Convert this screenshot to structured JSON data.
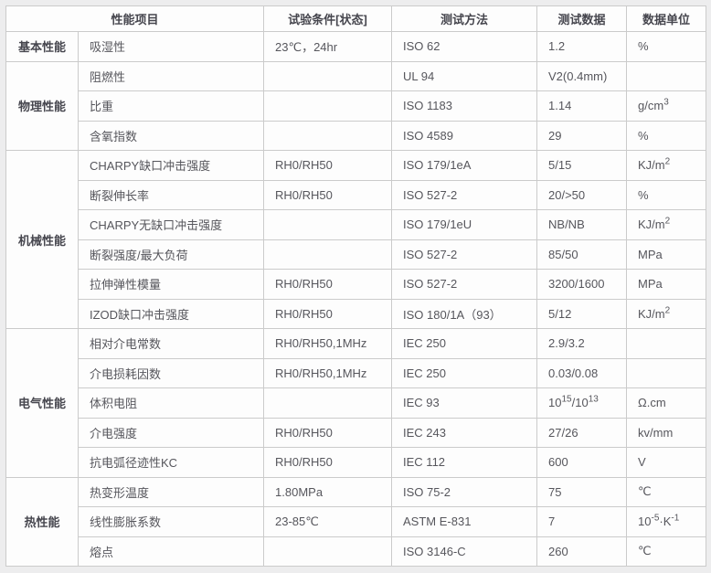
{
  "table": {
    "headers": [
      "性能项目",
      "试验条件[状态]",
      "测试方法",
      "测试数据",
      "数据单位"
    ],
    "groups": [
      {
        "category": "基本性能",
        "rows": [
          {
            "item": "吸湿性",
            "condition": "23℃，24hr",
            "method": "ISO 62",
            "value": "1.2",
            "unit": "%"
          }
        ]
      },
      {
        "category": "物理性能",
        "rows": [
          {
            "item": "阻燃性",
            "condition": "",
            "method": "UL 94",
            "value": "V2(0.4mm)",
            "unit": ""
          },
          {
            "item": "比重",
            "condition": "",
            "method": "ISO 1183",
            "value": "1.14",
            "unit": "g/cm^{3}"
          },
          {
            "item": "含氧指数",
            "condition": "",
            "method": "ISO 4589",
            "value": "29",
            "unit": "%"
          }
        ]
      },
      {
        "category": "机械性能",
        "rows": [
          {
            "item": "CHARPY缺口冲击强度",
            "condition": "RH0/RH50",
            "method": "ISO 179/1eA",
            "value": "5/15",
            "unit": "KJ/m^{2}"
          },
          {
            "item": "断裂伸长率",
            "condition": "RH0/RH50",
            "method": "ISO 527-2",
            "value": "20/>50",
            "unit": "%"
          },
          {
            "item": "CHARPY无缺口冲击强度",
            "condition": "",
            "method": "ISO 179/1eU",
            "value": "NB/NB",
            "unit": "KJ/m^{2}"
          },
          {
            "item": "断裂强度/最大负荷",
            "condition": "",
            "method": "ISO 527-2",
            "value": "85/50",
            "unit": "MPa"
          },
          {
            "item": "拉伸弹性模量",
            "condition": "RH0/RH50",
            "method": "ISO 527-2",
            "value": "3200/1600",
            "unit": "MPa"
          },
          {
            "item": "IZOD缺口冲击强度",
            "condition": "RH0/RH50",
            "method": "ISO 180/1A（93）",
            "value": "5/12",
            "unit": "KJ/m^{2}"
          }
        ]
      },
      {
        "category": "电气性能",
        "rows": [
          {
            "item": "相对介电常数",
            "condition": "RH0/RH50,1MHz",
            "method": "IEC 250",
            "value": "2.9/3.2",
            "unit": ""
          },
          {
            "item": "介电损耗因数",
            "condition": "RH0/RH50,1MHz",
            "method": "IEC 250",
            "value": "0.03/0.08",
            "unit": ""
          },
          {
            "item": "体积电阻",
            "condition": "",
            "method": "IEC 93",
            "value": "10^{15}/10^{13}",
            "unit": "Ω.cm"
          },
          {
            "item": "介电强度",
            "condition": "RH0/RH50",
            "method": "IEC 243",
            "value": "27/26",
            "unit": "kv/mm"
          },
          {
            "item": "抗电弧径迹性KC",
            "condition": "RH0/RH50",
            "method": "IEC 112",
            "value": "600",
            "unit": "V"
          }
        ]
      },
      {
        "category": "热性能",
        "rows": [
          {
            "item": "热变形温度",
            "condition": "1.80MPa",
            "method": "ISO 75-2",
            "value": "75",
            "unit": "℃"
          },
          {
            "item": "线性膨胀系数",
            "condition": "23-85℃",
            "method": "ASTM E-831",
            "value": "7",
            "unit": "10^{-5}·K^{-1}"
          },
          {
            "item": "熔点",
            "condition": "",
            "method": "ISO 3146-C",
            "value": "260",
            "unit": "℃"
          }
        ]
      }
    ]
  },
  "colors": {
    "page_background": "#ededee",
    "cell_background": "#fdfdfd",
    "border": "#cbcbcb",
    "text": "#56565c",
    "heading_text": "#46464e"
  }
}
